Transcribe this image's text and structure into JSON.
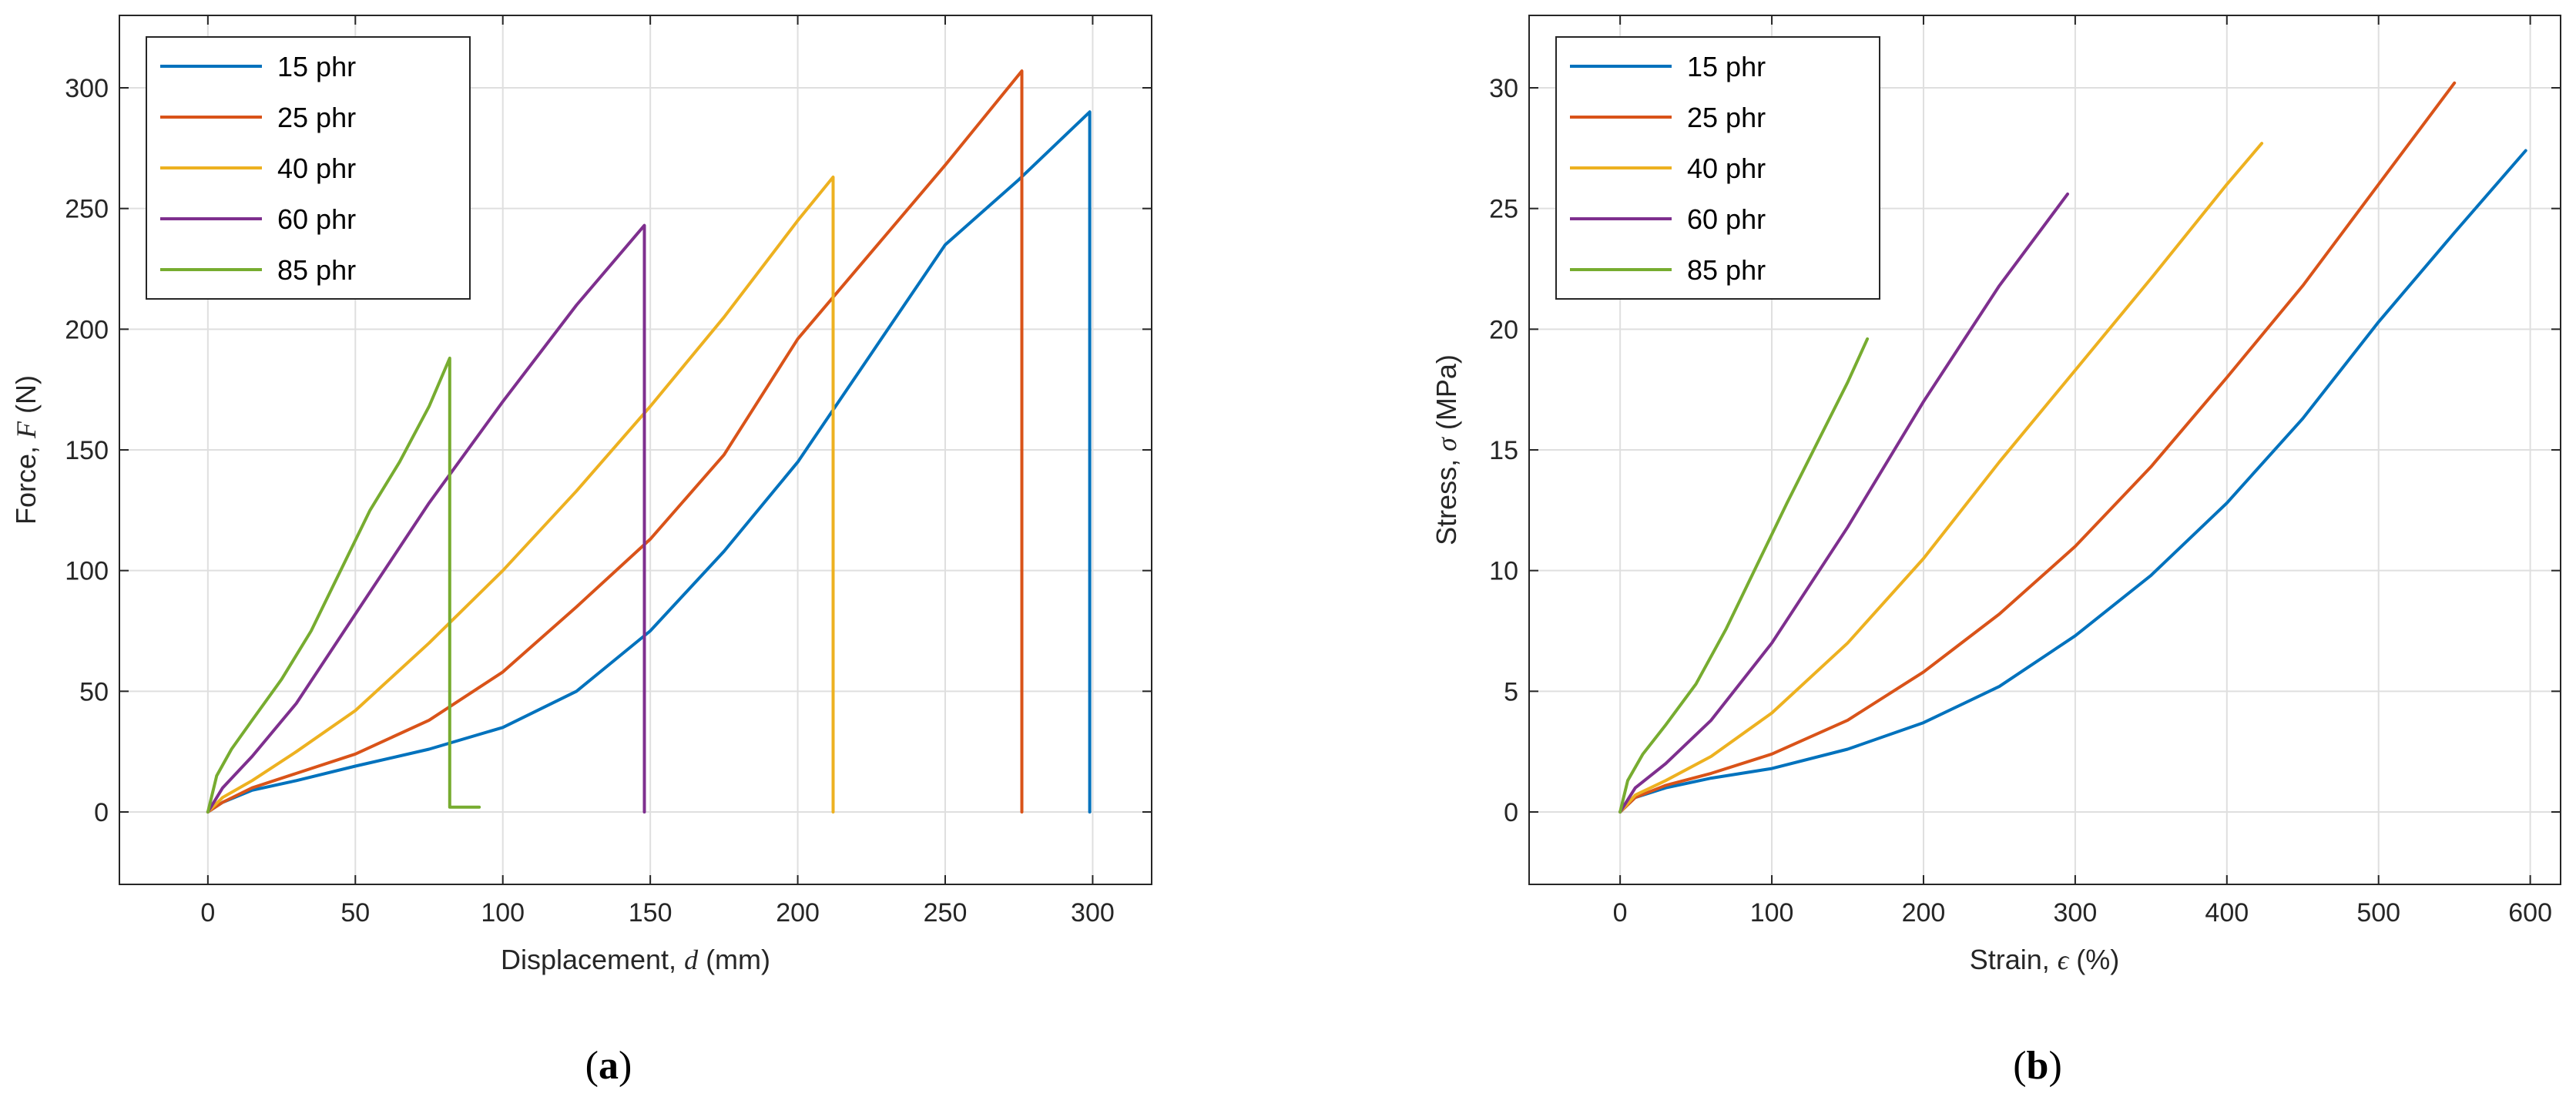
{
  "colors": {
    "15 phr": "#0072BD",
    "25 phr": "#D95319",
    "40 phr": "#EDB120",
    "60 phr": "#7E2F8E",
    "85 phr": "#77AC30",
    "grid": "#dfdfdf",
    "axes": "#262626"
  },
  "chart_data": [
    {
      "type": "line",
      "panel": "(a)",
      "panel_open": "(",
      "panel_letter": "a",
      "panel_close": ")",
      "xlabel_pre": "Displacement, ",
      "xlabel_sym": "d",
      "xlabel_post": " (mm)",
      "ylabel_pre": "Force, ",
      "ylabel_sym": "F",
      "ylabel_post": " (N)",
      "xlim": [
        -30,
        320
      ],
      "ylim": [
        -30,
        330
      ],
      "xticks": [
        0,
        50,
        100,
        150,
        200,
        250,
        300
      ],
      "yticks": [
        0,
        50,
        100,
        150,
        200,
        250,
        300
      ],
      "grid": true,
      "legend": "top-left",
      "series": [
        {
          "name": "15 phr",
          "x": [
            0,
            5,
            15,
            30,
            50,
            75,
            100,
            125,
            150,
            175,
            200,
            225,
            250,
            275,
            299,
            299
          ],
          "y": [
            0,
            4,
            9,
            13,
            19,
            26,
            35,
            50,
            75,
            108,
            145,
            190,
            235,
            262,
            290,
            0
          ]
        },
        {
          "name": "25 phr",
          "x": [
            0,
            5,
            15,
            30,
            50,
            75,
            100,
            125,
            150,
            175,
            200,
            225,
            250,
            276,
            276
          ],
          "y": [
            0,
            4,
            10,
            16,
            24,
            38,
            58,
            85,
            113,
            148,
            196,
            232,
            268,
            307,
            0
          ]
        },
        {
          "name": "40 phr",
          "x": [
            0,
            5,
            15,
            30,
            50,
            75,
            100,
            125,
            150,
            175,
            200,
            212,
            212
          ],
          "y": [
            0,
            6,
            13,
            25,
            42,
            70,
            100,
            133,
            168,
            205,
            245,
            263,
            0
          ]
        },
        {
          "name": "60 phr",
          "x": [
            0,
            5,
            15,
            30,
            50,
            75,
            100,
            125,
            148,
            148
          ],
          "y": [
            0,
            10,
            23,
            45,
            82,
            128,
            170,
            210,
            243,
            0
          ]
        },
        {
          "name": "85 phr",
          "x": [
            0,
            3,
            8,
            15,
            25,
            35,
            45,
            55,
            65,
            75,
            82,
            82,
            92
          ],
          "y": [
            0,
            15,
            26,
            38,
            55,
            75,
            100,
            125,
            145,
            168,
            188,
            2,
            2
          ]
        }
      ]
    },
    {
      "type": "line",
      "panel": "(b)",
      "panel_open": "(",
      "panel_letter": "b",
      "panel_close": ")",
      "xlabel_pre": "Strain, ",
      "xlabel_sym": "ϵ",
      "xlabel_post": " (%)",
      "ylabel_pre": "Stress, ",
      "ylabel_sym": "σ",
      "ylabel_post": " (MPa)",
      "xlim": [
        -60,
        620
      ],
      "ylim": [
        -3,
        33
      ],
      "xticks": [
        0,
        100,
        200,
        300,
        400,
        500,
        600
      ],
      "yticks": [
        0,
        5,
        10,
        15,
        20,
        25,
        30
      ],
      "grid": true,
      "legend": "top-left",
      "series": [
        {
          "name": "15 phr",
          "x": [
            0,
            10,
            30,
            60,
            100,
            150,
            200,
            250,
            300,
            350,
            400,
            450,
            500,
            550,
            597
          ],
          "y": [
            0,
            0.6,
            1.0,
            1.4,
            1.8,
            2.6,
            3.7,
            5.2,
            7.3,
            9.8,
            12.8,
            16.3,
            20.3,
            24.0,
            27.4
          ]
        },
        {
          "name": "25 phr",
          "x": [
            0,
            10,
            30,
            60,
            100,
            150,
            200,
            250,
            300,
            350,
            400,
            450,
            500,
            550
          ],
          "y": [
            0,
            0.6,
            1.1,
            1.6,
            2.4,
            3.8,
            5.8,
            8.2,
            11.0,
            14.3,
            18.0,
            21.8,
            26.0,
            30.2
          ]
        },
        {
          "name": "40 phr",
          "x": [
            0,
            10,
            30,
            60,
            100,
            150,
            200,
            250,
            300,
            350,
            400,
            423
          ],
          "y": [
            0,
            0.7,
            1.3,
            2.3,
            4.1,
            7.0,
            10.5,
            14.5,
            18.3,
            22.1,
            26.0,
            27.7
          ]
        },
        {
          "name": "60 phr",
          "x": [
            0,
            10,
            30,
            60,
            100,
            150,
            200,
            250,
            295
          ],
          "y": [
            0,
            1.0,
            2.0,
            3.8,
            7.0,
            11.8,
            17.0,
            21.8,
            25.6
          ]
        },
        {
          "name": "85 phr",
          "x": [
            0,
            5,
            15,
            30,
            50,
            70,
            90,
            110,
            130,
            150,
            163
          ],
          "y": [
            0,
            1.3,
            2.4,
            3.6,
            5.3,
            7.6,
            10.2,
            12.8,
            15.3,
            17.8,
            19.6
          ]
        }
      ]
    }
  ]
}
